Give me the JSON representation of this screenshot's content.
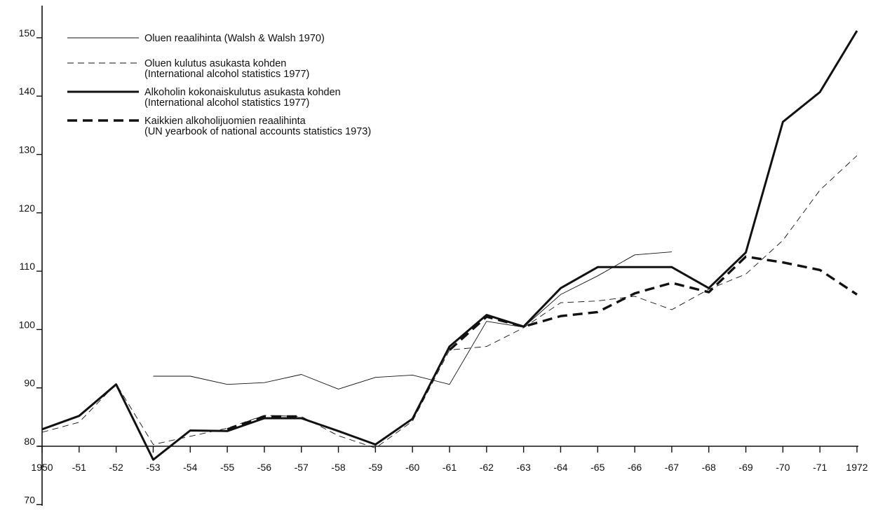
{
  "chart_data": {
    "type": "line",
    "title": "",
    "xlabel": "",
    "ylabel": "",
    "ylim": [
      70,
      151
    ],
    "yticks": [
      70,
      80,
      90,
      100,
      110,
      120,
      130,
      140,
      150
    ],
    "x_tick_labels": [
      "1950",
      "-51",
      "-52",
      "-53",
      "-54",
      "-55",
      "-56",
      "-57",
      "-58",
      "-59",
      "-60",
      "-61",
      "-62",
      "-63",
      "-64",
      "-65",
      "-66",
      "-67",
      "-68",
      "-69",
      "-70",
      "-71",
      "1972"
    ],
    "x": [
      1950,
      1951,
      1952,
      1953,
      1954,
      1955,
      1956,
      1957,
      1958,
      1959,
      1960,
      1961,
      1962,
      1963,
      1964,
      1965,
      1966,
      1967,
      1968,
      1969,
      1970,
      1971,
      1972
    ],
    "legend_position": "top-left",
    "grid": false,
    "series": [
      {
        "name_lines": [
          "Oluen reaalihinta (Walsh & Walsh 1970)"
        ],
        "style": "thin-solid",
        "values": [
          null,
          null,
          null,
          92,
          92,
          90.6,
          90.9,
          92.3,
          89.8,
          91.8,
          92.2,
          90.6,
          101.4,
          100.4,
          106,
          109.2,
          112.8,
          113.3,
          null,
          null,
          null,
          null,
          null
        ]
      },
      {
        "name_lines": [
          "Oluen kulutus asukasta kohden",
          "(International alcohol statistics 1977)"
        ],
        "style": "thin-dashed",
        "values": [
          82.4,
          84.1,
          90.7,
          80.3,
          81.7,
          83.1,
          85.3,
          85.1,
          81.8,
          79.7,
          84.3,
          96.5,
          97.1,
          100.3,
          104.6,
          104.9,
          105.7,
          103.4,
          106.9,
          109.5,
          115.3,
          123.9,
          129.8
        ]
      },
      {
        "name_lines": [
          "Alkoholin kokonaiskulutus asukasta kohden",
          "(International alcohol statistics 1977)"
        ],
        "style": "thick-solid",
        "values": [
          82.9,
          85.2,
          90.6,
          77.7,
          82.7,
          82.6,
          84.8,
          84.8,
          82.6,
          80.3,
          84.7,
          97.1,
          102.5,
          100.5,
          107.1,
          110.7,
          110.7,
          110.7,
          107.1,
          113.2,
          135.6,
          140.7,
          151.2
        ]
      },
      {
        "name_lines": [
          "Kaikkien alkoholijuomien reaalihinta",
          "(UN yearbook of national accounts statistics 1973)"
        ],
        "style": "thick-dashed",
        "values": [
          null,
          null,
          null,
          null,
          null,
          82.9,
          85.1,
          85.1,
          null,
          null,
          null,
          96.5,
          102.2,
          100.5,
          102.3,
          103,
          106.2,
          108,
          106.4,
          112.5,
          111.5,
          110.2,
          106
        ]
      }
    ]
  }
}
